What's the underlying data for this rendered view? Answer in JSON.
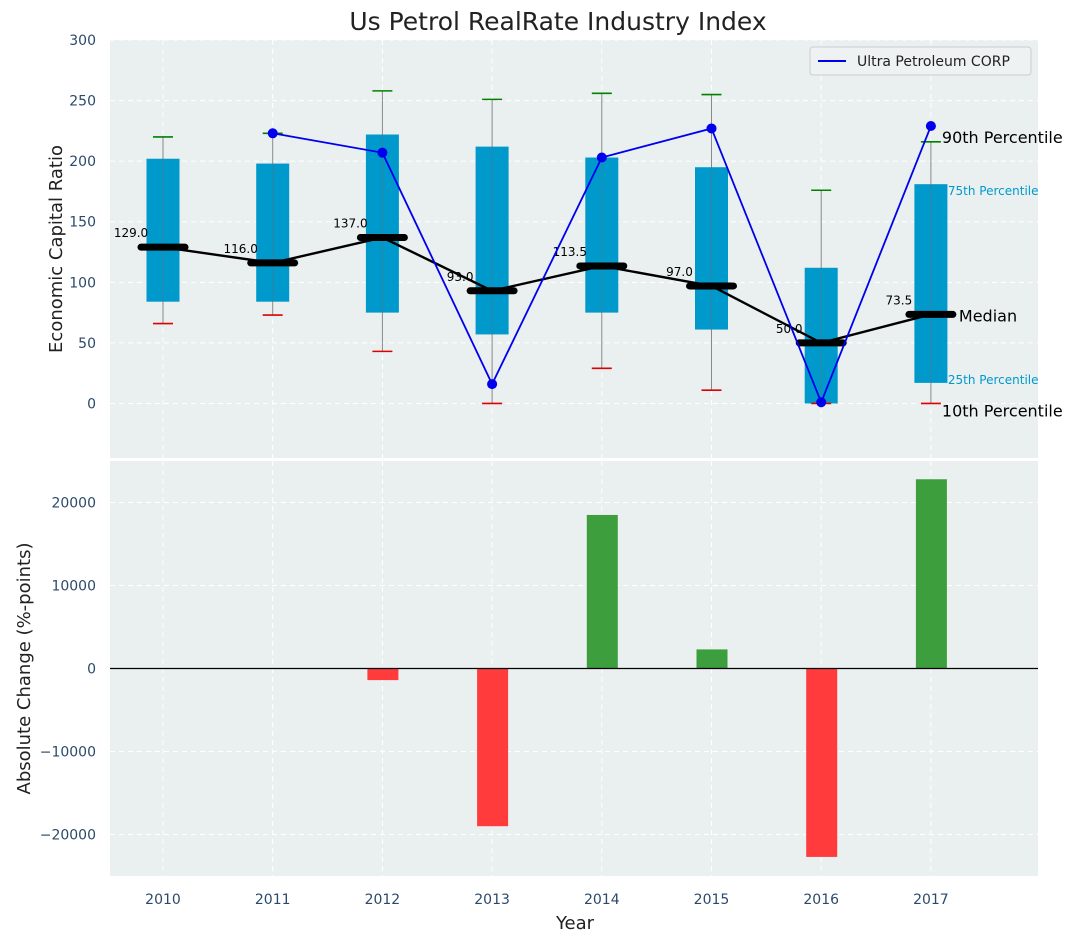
{
  "chart_data": [
    {
      "type": "box",
      "title": "Us Petrol RealRate Industry Index",
      "xlabel": "",
      "ylabel": "Economic Capital Ratio",
      "ylim": [
        -45,
        300
      ],
      "yticks": [
        0,
        50,
        100,
        150,
        200,
        250,
        300
      ],
      "categories": [
        "2010",
        "2011",
        "2012",
        "2013",
        "2014",
        "2015",
        "2016",
        "2017"
      ],
      "p10": [
        66,
        73,
        43,
        0,
        29,
        11,
        0,
        0
      ],
      "p25": [
        84,
        84,
        75,
        57,
        75,
        61,
        0,
        17
      ],
      "median": [
        129.0,
        116.0,
        137.0,
        93.0,
        113.5,
        97.0,
        50.0,
        73.5
      ],
      "median_labels": [
        "129.0",
        "116.0",
        "137.0",
        "93.0",
        "113.5",
        "97.0",
        "50.0",
        "73.5"
      ],
      "p75": [
        202,
        198,
        222,
        212,
        203,
        195,
        112,
        181
      ],
      "p90": [
        220,
        223,
        258,
        251,
        256,
        255,
        176,
        216
      ],
      "series": [
        {
          "name": "Ultra Petroleum CORP",
          "color": "#0000ee",
          "start_index": 1,
          "values": [
            223,
            207,
            16,
            203,
            227,
            1,
            229
          ]
        }
      ],
      "annotations": {
        "p90": "90th Percentile",
        "p75": "75th Percentile",
        "median": "Median",
        "p25": "25th Percentile",
        "p10": "10th Percentile"
      },
      "legend_position": "top-right",
      "grid": true
    },
    {
      "type": "bar",
      "xlabel": "Year",
      "ylabel": "Absolute Change (%-points)",
      "ylim": [
        -25000,
        25000
      ],
      "yticks": [
        -20000,
        -10000,
        0,
        10000,
        20000
      ],
      "ytick_labels": [
        "−20000",
        "−10000",
        "0",
        "10000",
        "20000"
      ],
      "categories": [
        "2010",
        "2011",
        "2012",
        "2013",
        "2014",
        "2015",
        "2016",
        "2017"
      ],
      "values": [
        0,
        0,
        -1400,
        -19000,
        18500,
        2300,
        -22700,
        22800
      ],
      "colors": {
        "positive": "#3c9e3c",
        "negative": "#ff3b3b"
      },
      "grid": true
    }
  ],
  "colors": {
    "box": "#0099cc",
    "panel_bg": "#eaeff0",
    "whisker_hi": "#008000",
    "whisker_lo": "#dd0000",
    "median_line": "#000000",
    "annot_small": "#0099cc"
  }
}
